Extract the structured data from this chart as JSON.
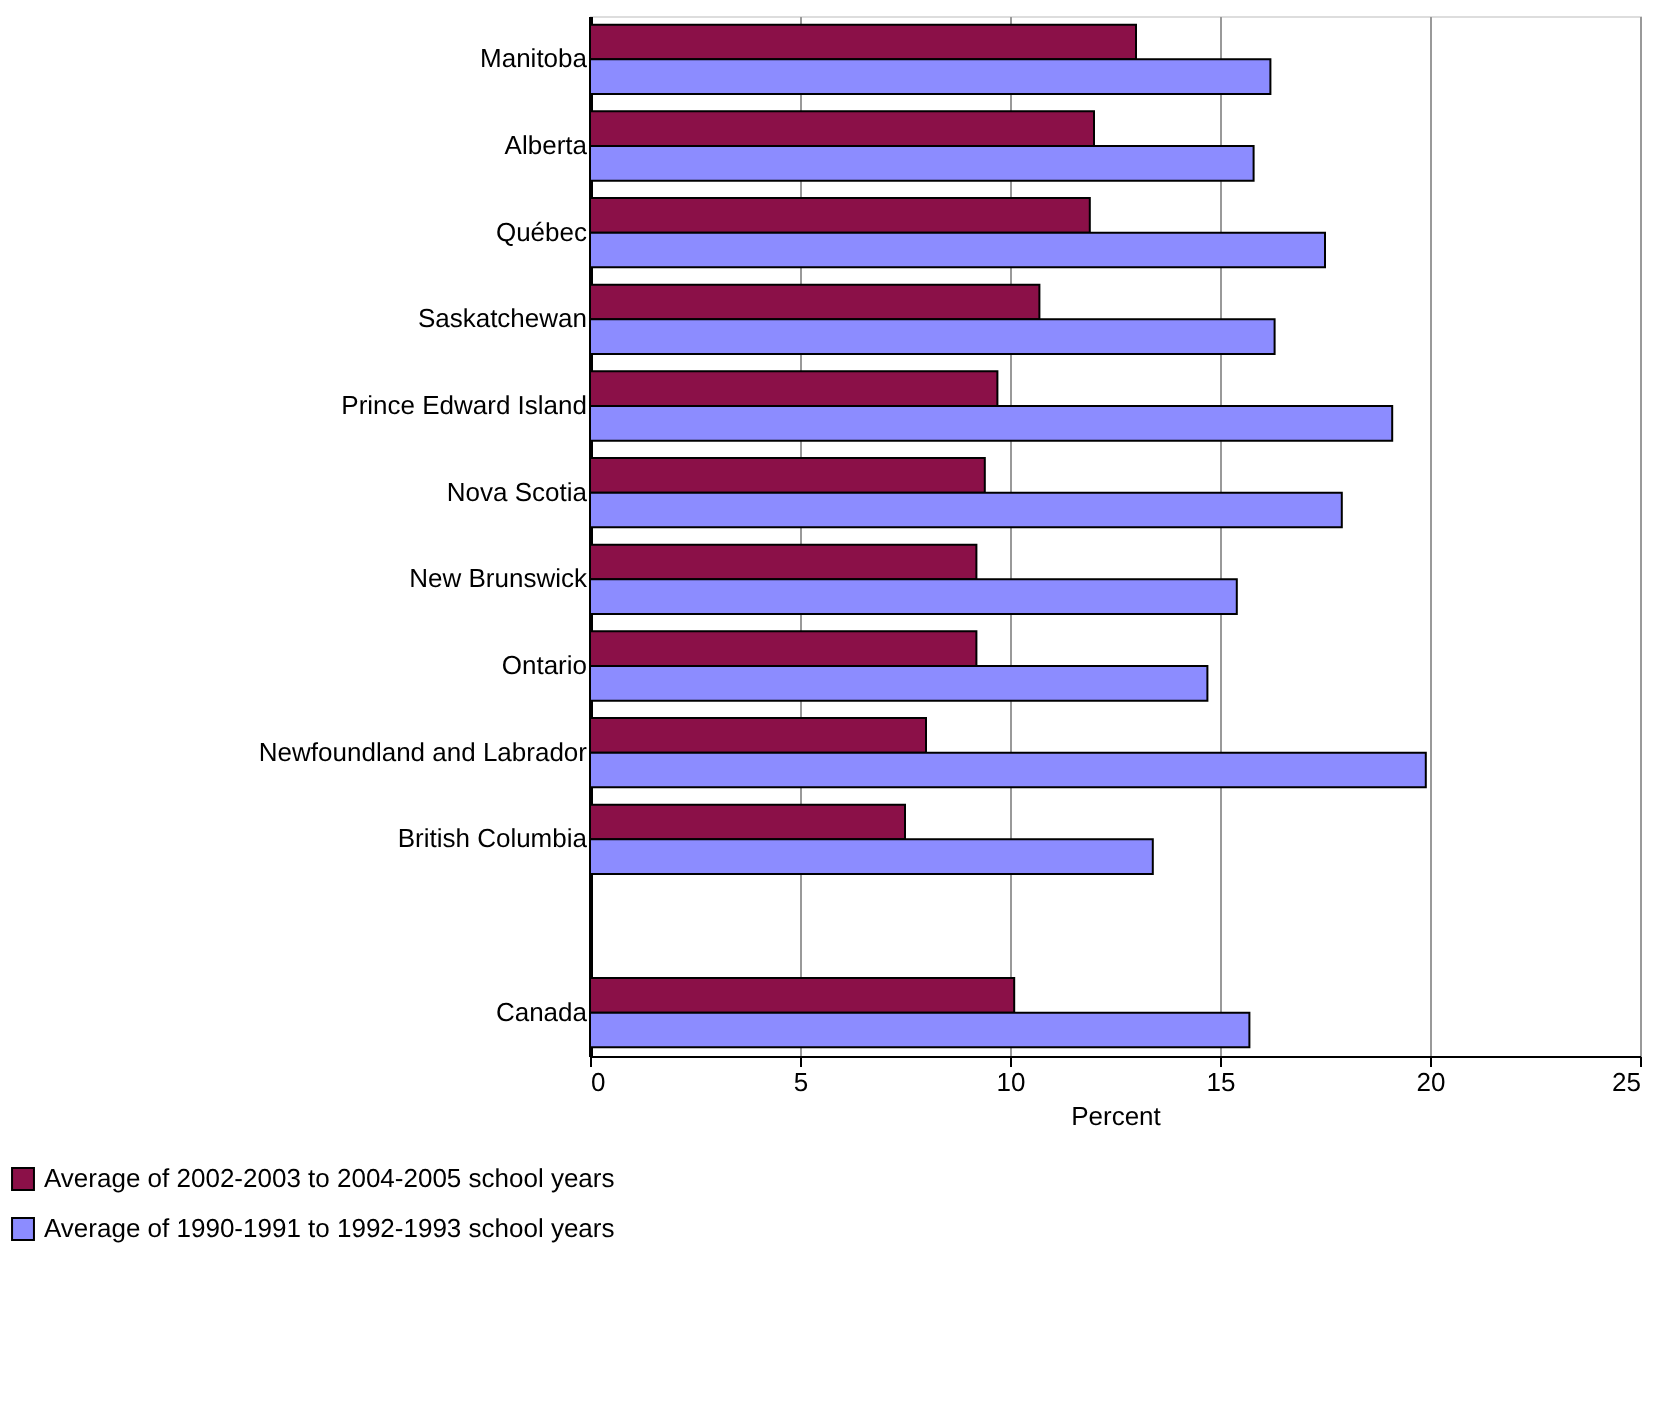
{
  "chart_data": {
    "type": "bar",
    "orientation": "horizontal",
    "xlabel": "Percent",
    "categories": [
      "Manitoba",
      "Alberta",
      "Québec",
      "Saskatchewan",
      "Prince Edward Island",
      "Nova Scotia",
      "New Brunswick",
      "Ontario",
      "Newfoundland and Labrador",
      "British Columbia",
      null,
      "Canada"
    ],
    "series": [
      {
        "name": "Average of 2002-2003 to 2004-2005 school years",
        "color": "#8b1048",
        "values": [
          13.0,
          12.0,
          11.9,
          10.7,
          9.7,
          9.4,
          9.2,
          9.2,
          8.0,
          7.5,
          null,
          10.1
        ]
      },
      {
        "name": "Average of 1990-1991 to 1992-1993 school years",
        "color": "#8c8cff",
        "values": [
          16.2,
          15.8,
          17.5,
          16.3,
          19.1,
          17.9,
          15.4,
          14.7,
          19.9,
          13.4,
          null,
          15.7
        ]
      }
    ],
    "xlim": [
      0,
      25
    ],
    "xticks": [
      0,
      5,
      10,
      15,
      20,
      25
    ],
    "grid": "x",
    "legend": "bottom left"
  }
}
